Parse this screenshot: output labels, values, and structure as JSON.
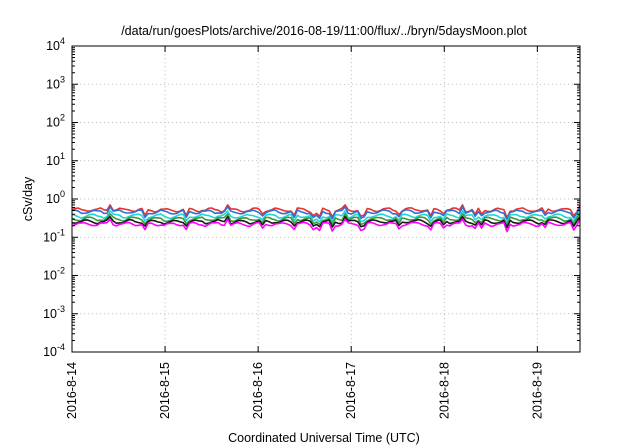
{
  "chart_data": {
    "type": "line",
    "title": "/data/run/goesPlots/archive/2016-08-19/11:00/flux/../bryn/5daysMoon.plot",
    "xlabel": "Coordinated Universal Time (UTC)",
    "ylabel": "cSv/day",
    "yscale": "log",
    "ylim": [
      0.0001,
      10000
    ],
    "y_ticks": [
      {
        "base": "10",
        "exp": "-4"
      },
      {
        "base": "10",
        "exp": "-3"
      },
      {
        "base": "10",
        "exp": "-2"
      },
      {
        "base": "10",
        "exp": "-1"
      },
      {
        "base": "10",
        "exp": "0"
      },
      {
        "base": "10",
        "exp": "1"
      },
      {
        "base": "10",
        "exp": "2"
      },
      {
        "base": "10",
        "exp": "3"
      },
      {
        "base": "10",
        "exp": "4"
      }
    ],
    "x_ticks": [
      "2016-8-14",
      "2016-8-15",
      "2016-8-16",
      "2016-8-17",
      "2016-8-18",
      "2016-8-19"
    ],
    "xlim": [
      "2016-08-14 00:00",
      "2016-08-19 11:00"
    ],
    "grid": true,
    "legend": "none",
    "series": [
      {
        "color": "#e8322a",
        "baseline": 0.52,
        "spike_low": 0.28
      },
      {
        "color": "#2f6fd8",
        "baseline": 0.46,
        "spike_low": 0.25
      },
      {
        "color": "#22d4d4",
        "baseline": 0.36,
        "spike_low": 0.21
      },
      {
        "color": "#3a9a3a",
        "baseline": 0.3,
        "spike_low": 0.18
      },
      {
        "color": "#1a1a1a",
        "baseline": 0.255,
        "spike_low": 0.16
      },
      {
        "color": "#ff00ff",
        "baseline": 0.22,
        "spike_low": 0.12
      }
    ]
  }
}
